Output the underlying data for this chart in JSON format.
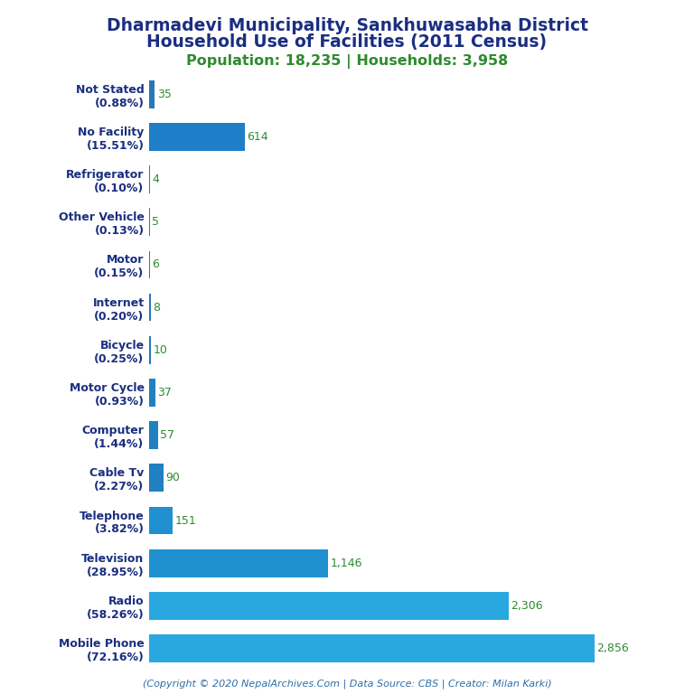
{
  "title_line1": "Dharmadevi Municipality, Sankhuwasabha District",
  "title_line2": "Household Use of Facilities (2011 Census)",
  "subtitle": "Population: 18,235 | Households: 3,958",
  "copyright": "(Copyright © 2020 NepalArchives.Com | Data Source: CBS | Creator: Milan Karki)",
  "categories": [
    "Not Stated\n(0.88%)",
    "No Facility\n(15.51%)",
    "Refrigerator\n(0.10%)",
    "Other Vehicle\n(0.13%)",
    "Motor\n(0.15%)",
    "Internet\n(0.20%)",
    "Bicycle\n(0.25%)",
    "Motor Cycle\n(0.93%)",
    "Computer\n(1.44%)",
    "Cable Tv\n(2.27%)",
    "Telephone\n(3.82%)",
    "Television\n(28.95%)",
    "Radio\n(58.26%)",
    "Mobile Phone\n(72.16%)"
  ],
  "values": [
    35,
    614,
    4,
    5,
    6,
    8,
    10,
    37,
    57,
    90,
    151,
    1146,
    2306,
    2856
  ],
  "bar_colors": [
    "#2878b8",
    "#1e7ec8",
    "#2878b8",
    "#2878b8",
    "#2878b8",
    "#2878b8",
    "#2878b8",
    "#2080c0",
    "#2080c0",
    "#2080c0",
    "#2090d0",
    "#2090d0",
    "#29a8e0",
    "#29a8e0"
  ],
  "title_color": "#1a2e80",
  "subtitle_color": "#2e8b2e",
  "value_color": "#2e8b2e",
  "label_color": "#1a2e80",
  "copyright_color": "#2e6ea8",
  "background_color": "#ffffff",
  "title_fontsize": 13.5,
  "subtitle_fontsize": 11.5,
  "label_fontsize": 9,
  "value_fontsize": 9,
  "copyright_fontsize": 8
}
